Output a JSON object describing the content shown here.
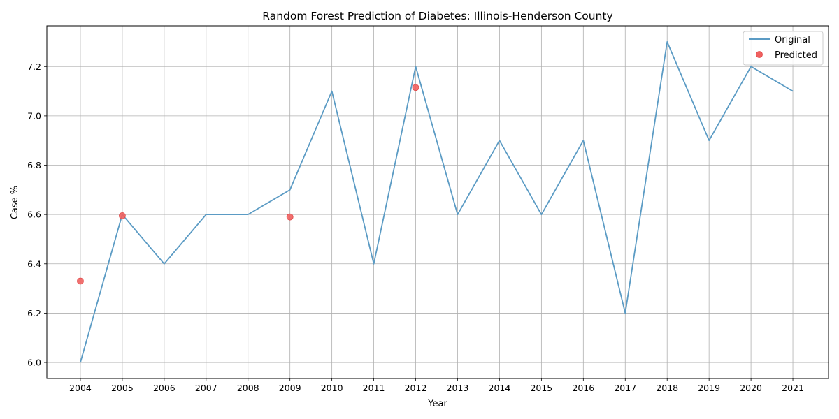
{
  "chart_data": {
    "type": "line",
    "title": "Random Forest Prediction of Diabetes: Illinois-Henderson County",
    "xlabel": "Year",
    "ylabel": "Case %",
    "x": [
      2004,
      2005,
      2006,
      2007,
      2008,
      2009,
      2010,
      2011,
      2012,
      2013,
      2014,
      2015,
      2016,
      2017,
      2018,
      2019,
      2020,
      2021
    ],
    "x_ticks": [
      "2004",
      "2005",
      "2006",
      "2007",
      "2008",
      "2009",
      "2010",
      "2011",
      "2012",
      "2013",
      "2014",
      "2015",
      "2016",
      "2017",
      "2018",
      "2019",
      "2020",
      "2021"
    ],
    "xlim": [
      2003.2,
      2021.85
    ],
    "ylim": [
      5.935,
      7.365
    ],
    "y_ticks": [
      "6.0",
      "6.2",
      "6.4",
      "6.6",
      "6.8",
      "7.0",
      "7.2"
    ],
    "grid": true,
    "legend_position": "top-right",
    "series": [
      {
        "name": "Original",
        "kind": "line",
        "color": "#5b9bc4",
        "x": [
          2004,
          2005,
          2006,
          2007,
          2008,
          2009,
          2010,
          2011,
          2012,
          2013,
          2014,
          2015,
          2016,
          2017,
          2018,
          2019,
          2020,
          2021
        ],
        "values": [
          6.0,
          6.6,
          6.4,
          6.6,
          6.6,
          6.7,
          7.1,
          6.4,
          7.2,
          6.6,
          6.9,
          6.6,
          6.9,
          6.2,
          7.3,
          6.9,
          7.2,
          7.1
        ]
      },
      {
        "name": "Predicted",
        "kind": "scatter",
        "color": "#f0605f",
        "x": [
          2004,
          2005,
          2009,
          2012
        ],
        "values": [
          6.33,
          6.595,
          6.59,
          7.115
        ]
      }
    ]
  }
}
